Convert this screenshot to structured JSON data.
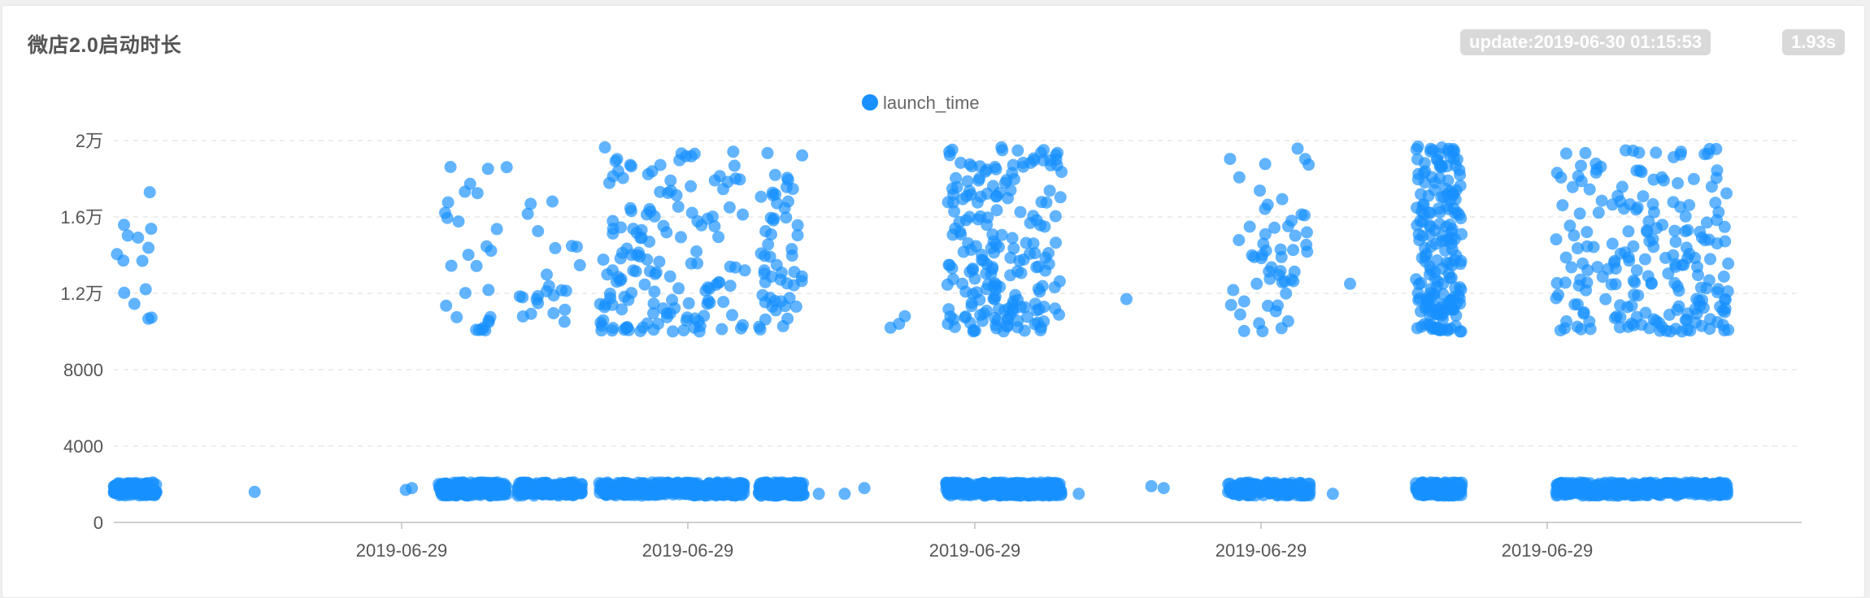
{
  "header": {
    "title": "微店2.0启动时长",
    "update_label": "update:2019-06-30 01:15:53",
    "duration_label": "1.93s"
  },
  "chart_data": {
    "type": "scatter",
    "title": "微店2.0启动时长",
    "xlabel": "",
    "ylabel": "",
    "x_tick_labels": [
      "2019-06-29",
      "2019-06-29",
      "2019-06-29",
      "2019-06-29",
      "2019-06-29"
    ],
    "y_tick_labels": [
      "0",
      "4000",
      "8000",
      "1.2万",
      "1.6万",
      "2万"
    ],
    "ylim": [
      0,
      20000
    ],
    "grid": true,
    "legend": {
      "position": "top-center",
      "entries": [
        "launch_time"
      ]
    },
    "colors": {
      "series": "#1890ff",
      "grid": "#e5e5e5",
      "axis": "#bfbfbf"
    },
    "series": [
      {
        "name": "launch_time",
        "note_x": "x values are relative positions along the time axis (0 = left edge, 1 = right edge); y values in data units",
        "clusters_low": [
          {
            "x_range": [
              0.0,
              0.045
            ],
            "y_range": [
              1400,
              2100
            ],
            "count": 140
          },
          {
            "x_range": [
              0.34,
              0.412
            ],
            "y_range": [
              1400,
              2100
            ],
            "count": 230
          },
          {
            "x_range": [
              0.423,
              0.49
            ],
            "y_range": [
              1400,
              2100
            ],
            "count": 200
          },
          {
            "x_range": [
              0.508,
              0.66
            ],
            "y_range": [
              1400,
              2100
            ],
            "count": 420
          },
          {
            "x_range": [
              0.675,
              0.722
            ],
            "y_range": [
              1400,
              2100
            ],
            "count": 170
          },
          {
            "x_range": [
              0.871,
              0.992
            ],
            "y_range": [
              1400,
              2100
            ],
            "count": 380
          },
          {
            "x_range": [
              1.166,
              1.252
            ],
            "y_range": [
              1400,
              2100
            ],
            "count": 190
          },
          {
            "x_range": [
              1.363,
              1.411
            ],
            "y_range": [
              1400,
              2100
            ],
            "count": 150
          },
          {
            "x_range": [
              1.509,
              1.69
            ],
            "y_range": [
              1400,
              2100
            ],
            "count": 420
          }
        ],
        "clusters_high": [
          {
            "x_range": [
              0.0,
              0.045
            ],
            "y_range": [
              10400,
              17400
            ],
            "count": 14
          },
          {
            "x_range": [
              0.34,
              0.412
            ],
            "y_range": [
              10000,
              18800
            ],
            "count": 28
          },
          {
            "x_range": [
              0.423,
              0.49
            ],
            "y_range": [
              10300,
              17600
            ],
            "count": 24
          },
          {
            "x_range": [
              0.508,
              0.66
            ],
            "y_range": [
              10000,
              20000
            ],
            "count": 150
          },
          {
            "x_range": [
              0.675,
              0.722
            ],
            "y_range": [
              10000,
              19400
            ],
            "count": 55
          },
          {
            "x_range": [
              0.871,
              0.992
            ],
            "y_range": [
              10000,
              19800
            ],
            "count": 200
          },
          {
            "x_range": [
              1.166,
              1.252
            ],
            "y_range": [
              10000,
              19600
            ],
            "count": 55
          },
          {
            "x_range": [
              1.363,
              1.411
            ],
            "y_range": [
              10000,
              19700
            ],
            "count": 190
          },
          {
            "x_range": [
              1.509,
              1.69
            ],
            "y_range": [
              10000,
              19600
            ],
            "count": 210
          }
        ],
        "outliers": [
          {
            "x": 0.1474,
            "y": 1600
          },
          {
            "x": 0.3056,
            "y": 1700
          },
          {
            "x": 0.312,
            "y": 1800
          },
          {
            "x": 0.5236,
            "y": 1500
          },
          {
            "x": 0.6605,
            "y": 13200
          },
          {
            "x": 0.765,
            "y": 1500
          },
          {
            "x": 0.7856,
            "y": 1800
          },
          {
            "x": 0.738,
            "y": 1500
          },
          {
            "x": 0.813,
            "y": 10200
          },
          {
            "x": 0.822,
            "y": 10400
          },
          {
            "x": 0.828,
            "y": 10800
          },
          {
            "x": 1.01,
            "y": 1500
          },
          {
            "x": 1.06,
            "y": 11700
          },
          {
            "x": 1.086,
            "y": 1900
          },
          {
            "x": 1.099,
            "y": 1800
          },
          {
            "x": 1.276,
            "y": 1500
          },
          {
            "x": 1.294,
            "y": 12500
          }
        ]
      }
    ]
  }
}
